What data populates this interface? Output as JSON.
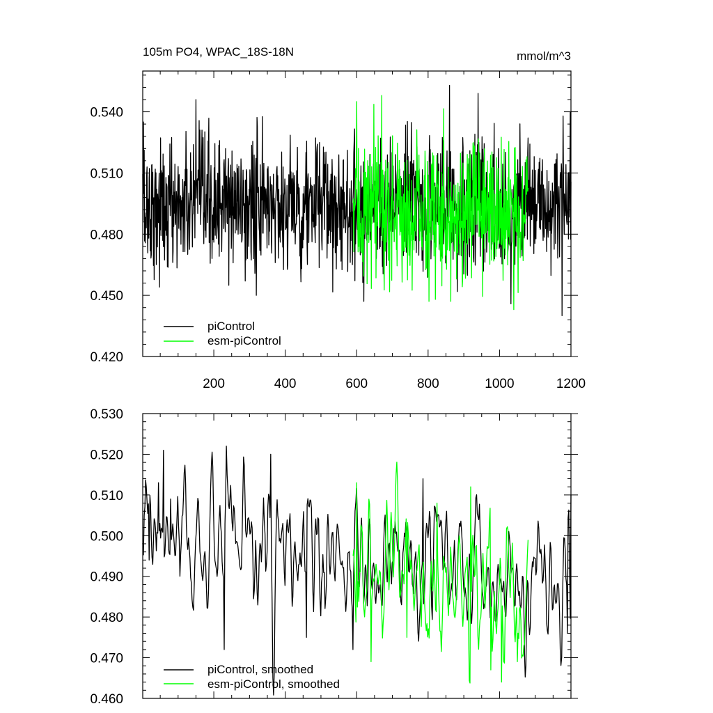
{
  "colors": {
    "piControl": "#000000",
    "esm_piControl": "#00ff00",
    "axis": "#000000",
    "background": "#ffffff"
  },
  "chart_data": [
    {
      "type": "line",
      "title": "105m PO4, WPAC_18S-18N",
      "units": "mmol/m^3",
      "xlim": [
        1,
        1200
      ],
      "ylim": [
        0.42,
        0.56
      ],
      "x_ticks": [
        200,
        400,
        600,
        800,
        1000,
        1200
      ],
      "x_tick_labels": [
        "200",
        "400",
        "600",
        "800",
        "1000",
        "1200"
      ],
      "y_ticks": [
        0.42,
        0.45,
        0.48,
        0.51,
        0.54
      ],
      "y_tick_labels": [
        "0.420",
        "0.450",
        "0.480",
        "0.510",
        "0.540"
      ],
      "legend_position": "bottom-left",
      "series": [
        {
          "name": "piControl",
          "color": "#000000",
          "x_start": 1,
          "x_end": 1200,
          "n_points": 1200,
          "mean": 0.494,
          "std": 0.016,
          "min": 0.438,
          "max": 0.553,
          "noise": "white",
          "anchors": [
            {
              "x": 3,
              "y": 0.535
            },
            {
              "x": 70,
              "y": 0.464
            },
            {
              "x": 150,
              "y": 0.546
            },
            {
              "x": 288,
              "y": 0.457
            },
            {
              "x": 620,
              "y": 0.447
            },
            {
              "x": 860,
              "y": 0.553
            },
            {
              "x": 940,
              "y": 0.549
            },
            {
              "x": 1175,
              "y": 0.44
            },
            {
              "x": 1198,
              "y": 0.54
            }
          ]
        },
        {
          "name": "esm-piControl",
          "color": "#00ff00",
          "x_start": 590,
          "x_end": 1080,
          "n_points": 490,
          "mean": 0.491,
          "std": 0.017,
          "min": 0.443,
          "max": 0.548,
          "noise": "white",
          "anchors": [
            {
              "x": 600,
              "y": 0.545
            },
            {
              "x": 670,
              "y": 0.548
            },
            {
              "x": 820,
              "y": 0.448
            },
            {
              "x": 1040,
              "y": 0.443
            }
          ]
        }
      ]
    },
    {
      "type": "line",
      "title": "",
      "xlim": [
        1,
        1200
      ],
      "ylim": [
        0.46,
        0.53
      ],
      "x_ticks": [
        200,
        400,
        600,
        800,
        1000,
        1200
      ],
      "x_tick_labels": [],
      "y_ticks": [
        0.46,
        0.47,
        0.48,
        0.49,
        0.5,
        0.51,
        0.52,
        0.53
      ],
      "y_tick_labels": [
        "0.460",
        "0.470",
        "0.480",
        "0.490",
        "0.500",
        "0.510",
        "0.520",
        "0.530"
      ],
      "legend_position": "bottom-left",
      "series": [
        {
          "name": "piControl, smoothed",
          "color": "#000000",
          "x_start": 1,
          "x_end": 1200,
          "n_points": 600,
          "noise": "smoothed",
          "amplitude": 0.0085,
          "trend": [
            {
              "x": 1,
              "y": 0.499
            },
            {
              "x": 600,
              "y": 0.492
            },
            {
              "x": 1200,
              "y": 0.488
            }
          ],
          "anchors": [
            {
              "x": 5,
              "y": 0.505
            },
            {
              "x": 20,
              "y": 0.494
            },
            {
              "x": 45,
              "y": 0.513
            },
            {
              "x": 60,
              "y": 0.521
            },
            {
              "x": 80,
              "y": 0.509
            },
            {
              "x": 230,
              "y": 0.472
            },
            {
              "x": 235,
              "y": 0.522
            },
            {
              "x": 360,
              "y": 0.52
            },
            {
              "x": 460,
              "y": 0.475
            },
            {
              "x": 590,
              "y": 0.472
            },
            {
              "x": 785,
              "y": 0.514
            },
            {
              "x": 1190,
              "y": 0.476
            },
            {
              "x": 1200,
              "y": 0.51
            }
          ]
        },
        {
          "name": "esm-piControl, smoothed",
          "color": "#00ff00",
          "x_start": 590,
          "x_end": 1080,
          "n_points": 245,
          "noise": "smoothed",
          "amplitude": 0.009,
          "trend": [
            {
              "x": 590,
              "y": 0.49
            },
            {
              "x": 1080,
              "y": 0.485
            }
          ],
          "anchors": [
            {
              "x": 600,
              "y": 0.513
            },
            {
              "x": 640,
              "y": 0.469
            },
            {
              "x": 740,
              "y": 0.475
            },
            {
              "x": 825,
              "y": 0.508
            },
            {
              "x": 920,
              "y": 0.512
            },
            {
              "x": 975,
              "y": 0.467
            },
            {
              "x": 1005,
              "y": 0.464
            },
            {
              "x": 1050,
              "y": 0.469
            }
          ]
        }
      ]
    }
  ]
}
